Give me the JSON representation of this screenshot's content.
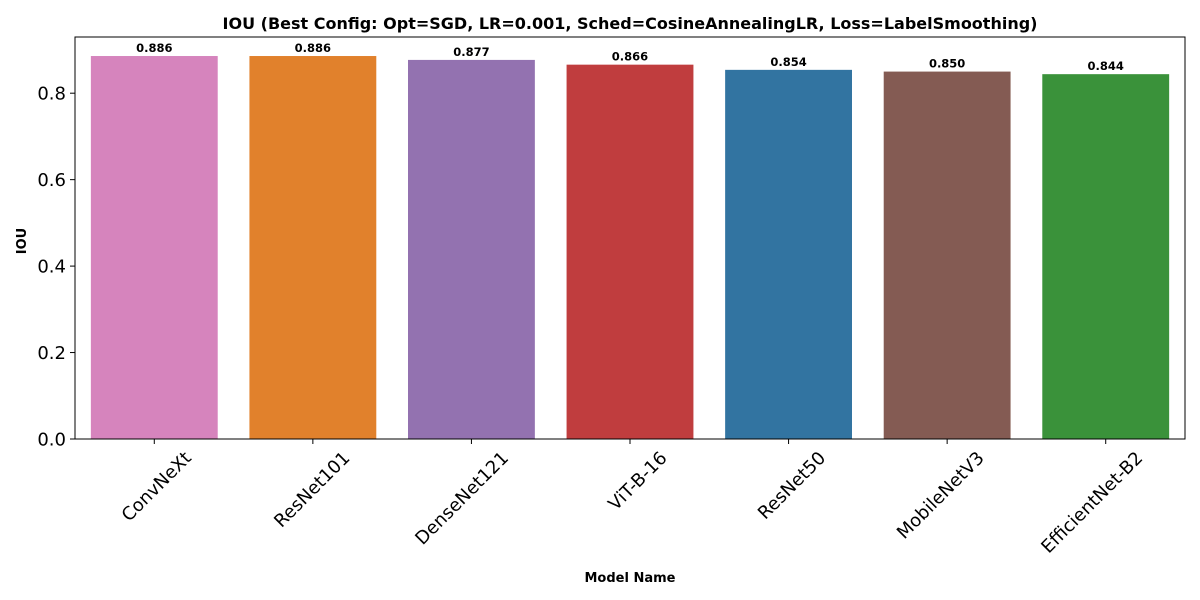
{
  "chart_data": {
    "type": "bar",
    "title": "IOU (Best Config: Opt=SGD, LR=0.001, Sched=CosineAnnealingLR, Loss=LabelSmoothing)",
    "xlabel": "Model Name",
    "ylabel": "IOU",
    "categories": [
      "ConvNeXt",
      "ResNet101",
      "DenseNet121",
      "ViT-B-16",
      "ResNet50",
      "MobileNetV3",
      "EfficientNet-B2"
    ],
    "values": [
      0.886,
      0.886,
      0.877,
      0.866,
      0.854,
      0.85,
      0.844
    ],
    "value_labels": [
      "0.886",
      "0.886",
      "0.877",
      "0.866",
      "0.854",
      "0.850",
      "0.844"
    ],
    "colors": [
      "#d684bd",
      "#e1812c",
      "#9372b0",
      "#c03d3e",
      "#3274a1",
      "#845b53",
      "#3a923a"
    ],
    "ylim": [
      0,
      0.93
    ],
    "yticks": [
      0.0,
      0.2,
      0.4,
      0.6,
      0.8
    ],
    "ytick_labels": [
      "0.0",
      "0.2",
      "0.4",
      "0.6",
      "0.8"
    ],
    "grid": false,
    "legend": "none"
  }
}
